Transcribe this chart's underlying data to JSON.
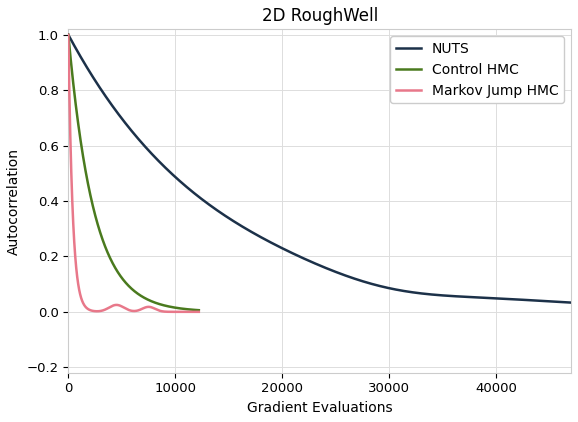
{
  "title": "2D RoughWell",
  "xlabel": "Gradient Evaluations",
  "ylabel": "Autocorrelation",
  "xlim": [
    0,
    47000
  ],
  "ylim": [
    -0.22,
    1.02
  ],
  "yticks": [
    -0.2,
    0.0,
    0.2,
    0.4,
    0.6,
    0.8,
    1.0
  ],
  "xticks": [
    0,
    10000,
    20000,
    30000,
    40000
  ],
  "xticklabels": [
    "0",
    "10000",
    "20000",
    "30000",
    "40000"
  ],
  "lines": {
    "NUTS": {
      "color": "#1c3149",
      "linewidth": 1.8
    },
    "Control HMC": {
      "color": "#4a7a1e",
      "linewidth": 1.8
    },
    "Markov Jump HMC": {
      "color": "#e8788a",
      "linewidth": 1.8
    }
  },
  "legend_loc": "upper right",
  "background_color": "#ffffff",
  "grid_color": "#dddddd",
  "title_fontsize": 12,
  "label_fontsize": 10,
  "tick_fontsize": 9.5
}
